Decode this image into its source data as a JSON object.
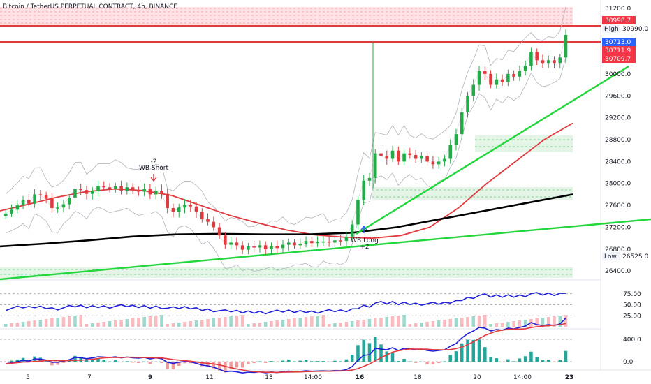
{
  "header": {
    "title": "Bitcoin / TetherUS PERPETUAL CONTRACT, 4h, BINANCE"
  },
  "price_axis": {
    "ticks": [
      "31200.0",
      "30800.0",
      "30000.0",
      "29600.0",
      "29200.0",
      "28800.0",
      "28400.0",
      "28000.0",
      "27600.0",
      "27200.0",
      "26800.0",
      "26400.0"
    ],
    "tags": [
      {
        "text": "30998.7",
        "color": "#f23645"
      },
      {
        "text": "30990.0",
        "color": "#ffffff",
        "label": "High"
      },
      {
        "text": "30713.0",
        "color": "#2962ff"
      },
      {
        "text": "30711.9",
        "color": "#f23645"
      },
      {
        "text": "30709.7",
        "color": "#f23645"
      },
      {
        "text": "26525.0",
        "color": "#ffffff",
        "label": "Low"
      }
    ]
  },
  "osc_axis": {
    "rsi_ticks": [
      "75.00",
      "50.00",
      "25.00"
    ],
    "macd_ticks": [
      "400.0",
      "0.0"
    ]
  },
  "time_axis": {
    "labels": [
      "5",
      "7",
      "9",
      "11",
      "13",
      "14:00",
      "16",
      "18",
      "20",
      "14:00",
      "23"
    ]
  },
  "annotations": {
    "short_top": "-2",
    "short_label": "WB Short",
    "long_label": "WB Long",
    "long_bottom": "+2"
  },
  "colors": {
    "up": "#22ab46",
    "down": "#e0393e",
    "ma_red": "#e0393e",
    "ma_black": "#000000",
    "trend_green": "#22d63b",
    "rsi": "#1f1fd4",
    "macd_blue": "#1f1fd4",
    "macd_red": "#e0393e"
  },
  "chart_data": {
    "type": "candlestick",
    "symbol": "BTCUSDT",
    "interval": "4h",
    "y_range": [
      26250,
      31350
    ],
    "closes": [
      27450,
      27520,
      27600,
      27700,
      27630,
      27800,
      27780,
      27720,
      27550,
      27560,
      27620,
      27740,
      27900,
      27880,
      27810,
      27870,
      27950,
      27930,
      27900,
      27950,
      27870,
      27930,
      27880,
      27850,
      27900,
      27800,
      27870,
      27810,
      27550,
      27480,
      27560,
      27610,
      27580,
      27480,
      27350,
      27300,
      27200,
      27050,
      26880,
      26920,
      26870,
      26790,
      26850,
      26830,
      26870,
      26800,
      26860,
      26820,
      26880,
      26920,
      26870,
      26900,
      26950,
      26910,
      26930,
      26940,
      26920,
      26960,
      26950,
      27030,
      27250,
      27700,
      28050,
      28100,
      28550,
      28500,
      28450,
      28600,
      28400,
      28550,
      28520,
      28450,
      28500,
      28400,
      28350,
      28400,
      28450,
      28700,
      28900,
      29300,
      29600,
      29800,
      30050,
      30000,
      29800,
      29900,
      29850,
      30000,
      29950,
      30050,
      30150,
      30400,
      30250,
      30200,
      30250,
      30200,
      30300,
      30713
    ],
    "ma_red_values": [
      27500,
      27620,
      27750,
      27850,
      27900,
      27870,
      27780,
      27600,
      27420,
      27280,
      27150,
      27060,
      27020,
      27000,
      27050,
      27200,
      27550,
      28000,
      28400,
      28800,
      29100
    ],
    "ma_black_values": [
      26850,
      26900,
      26960,
      27030,
      27070,
      27080,
      27070,
      27070,
      27100,
      27200,
      27350,
      27500,
      27650,
      27800
    ],
    "annotated_levels": [
      30998.7,
      30990.0,
      30713.0,
      30711.9,
      30709.7,
      26525.0
    ],
    "rsi": {
      "levels": [
        75,
        50,
        25
      ]
    },
    "macd": {
      "levels": [
        400,
        0
      ]
    }
  }
}
